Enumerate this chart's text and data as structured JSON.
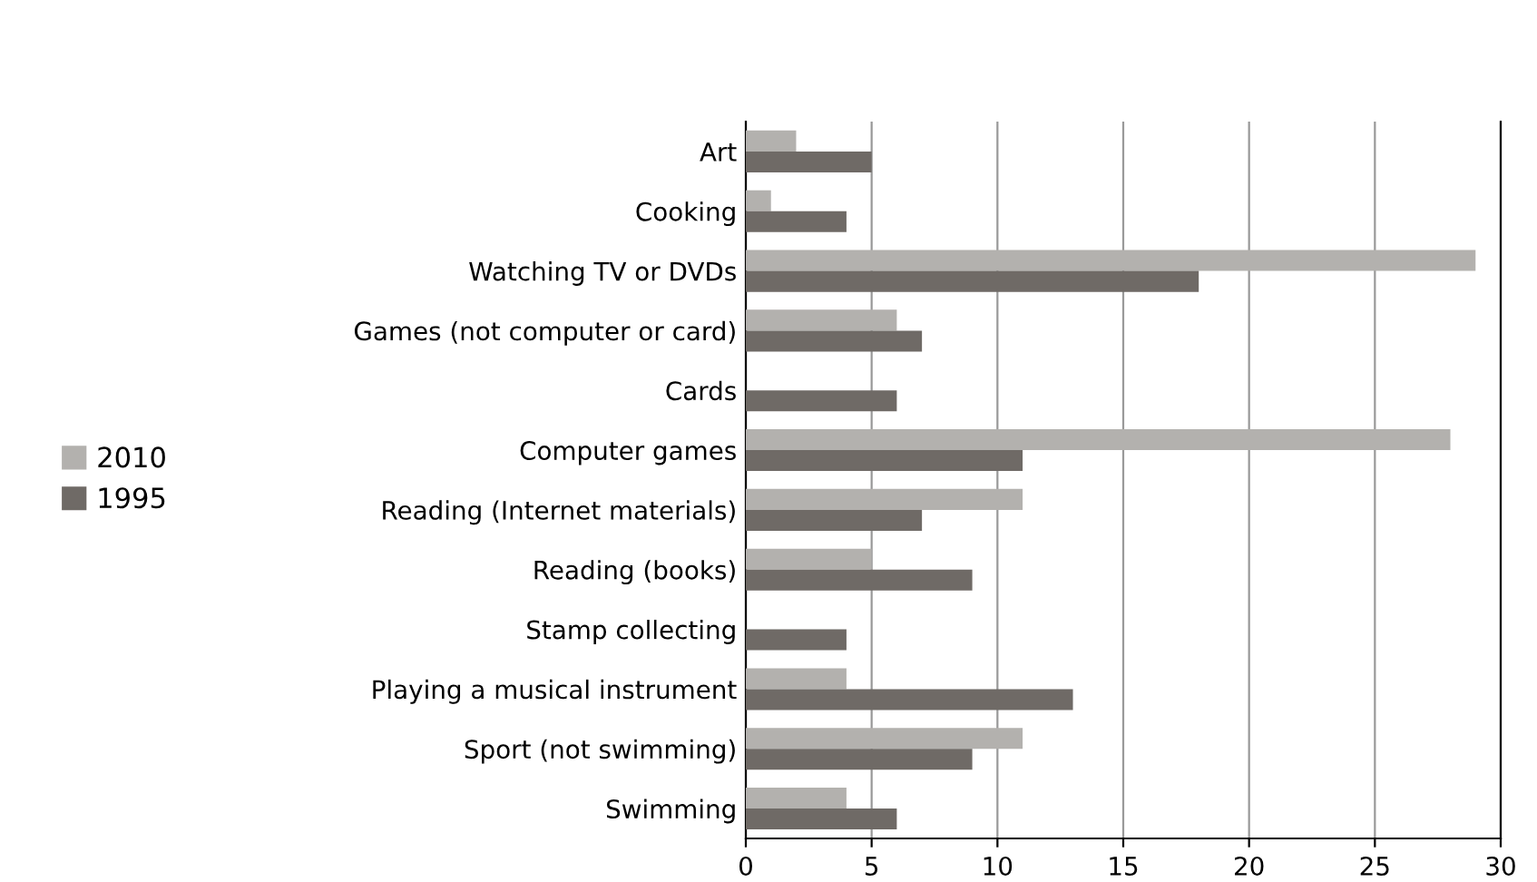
{
  "chart_data": {
    "type": "bar",
    "orientation": "horizontal",
    "categories": [
      "Art",
      "Cooking",
      "Watching TV or DVDs",
      "Games (not computer or card)",
      "Cards",
      "Computer games",
      "Reading (Internet materials)",
      "Reading (books)",
      "Stamp collecting",
      "Playing a musical instrument",
      "Sport (not swimming)",
      "Swimming"
    ],
    "series": [
      {
        "name": "2010",
        "color": "#b3b1ae",
        "values": [
          2,
          1,
          29,
          6,
          0,
          28,
          11,
          5,
          0,
          4,
          11,
          4
        ]
      },
      {
        "name": "1995",
        "color": "#6f6a66",
        "values": [
          5,
          4,
          18,
          7,
          6,
          11,
          7,
          9,
          4,
          13,
          9,
          6
        ]
      }
    ],
    "xlim": [
      0,
      30
    ],
    "xticks": [
      0,
      5,
      10,
      15,
      20,
      25,
      30
    ],
    "grid": "x",
    "legend": "left"
  }
}
